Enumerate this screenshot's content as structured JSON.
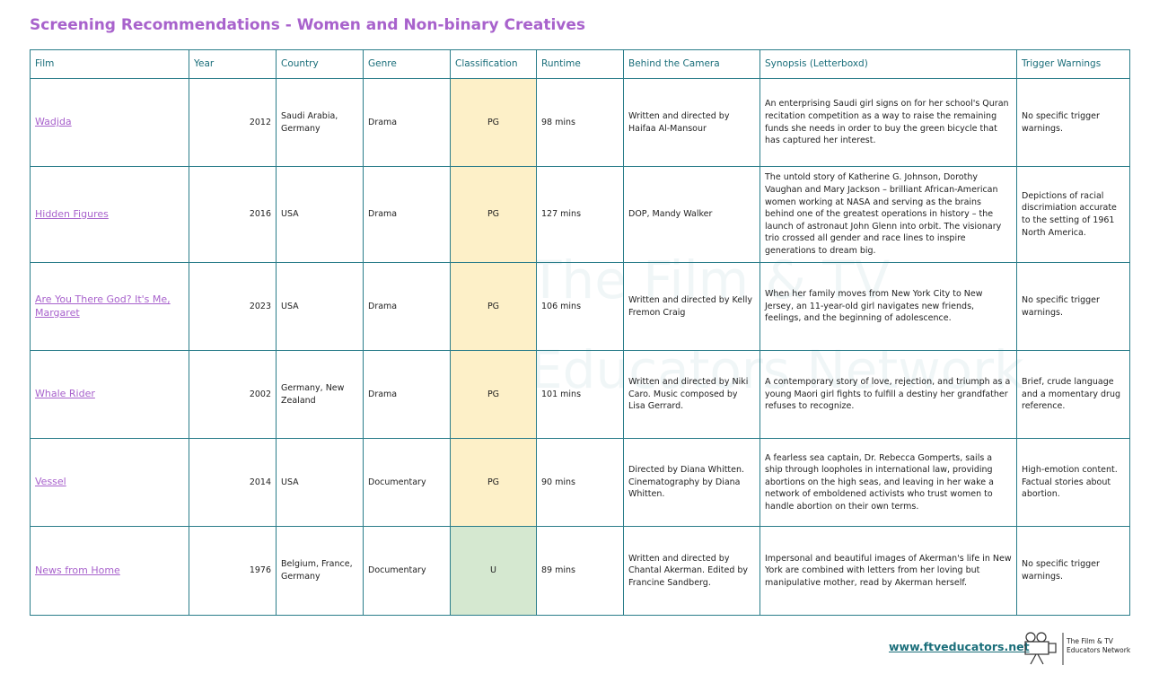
{
  "header": {
    "title": "Screening Recommendations - Women and Non-binary Creatives"
  },
  "table": {
    "headers": [
      "Film",
      "Year",
      "Country",
      "Genre",
      "Classification",
      "Runtime",
      "Behind the Camera",
      "Synopsis (Letterboxd)",
      "Trigger Warnings"
    ],
    "rows": [
      [
        "Wadjda",
        "2012",
        "Saudi Arabia, Germany",
        "Drama",
        "PG",
        "98 mins",
        "Written and directed by Haifaa Al-Mansour",
        "An enterprising Saudi girl signs on for her school's Quran recitation competition as a way to raise the remaining funds she needs in order to buy the green bicycle that has captured her interest.",
        "No specific trigger warnings."
      ],
      [
        "Hidden Figures",
        "2016",
        "USA",
        "Drama",
        "PG",
        "127 mins",
        "DOP, Mandy Walker",
        "The untold story of Katherine G. Johnson, Dorothy Vaughan and Mary Jackson – brilliant African-American women working at NASA and serving as the brains behind one of the greatest operations in history – the launch of astronaut John Glenn into orbit. The visionary trio crossed all gender and race lines to inspire generations to dream big.",
        "Depictions of racial discrimiation accurate to the setting of 1961 North America."
      ],
      [
        "Are You There God? It's Me, Margaret",
        "2023",
        "USA",
        "Drama",
        "PG",
        "106 mins",
        "Written and directed by Kelly Fremon Craig",
        "When her family moves from New York City to New Jersey, an 11-year-old girl navigates new friends, feelings, and the beginning of adolescence.",
        "No specific trigger warnings."
      ],
      [
        "Whale Rider",
        "2002",
        "Germany, New Zealand",
        "Drama",
        "PG",
        "101 mins",
        "Written and directed by Niki Caro. Music composed by Lisa Gerrard.",
        "A contemporary story of love, rejection, and triumph as a young Maori girl fights to fulfill a destiny her grandfather refuses to recognize.",
        "Brief, crude language and a momentary drug reference."
      ],
      [
        "Vessel",
        "2014",
        "USA",
        "Documentary",
        "PG",
        "90 mins",
        "Directed by Diana Whitten. Cinematography by Diana Whitten.",
        "A fearless sea captain, Dr. Rebecca Gomperts, sails a ship through loopholes in international law, providing abortions on the high seas, and leaving in her wake a network of emboldened activists who trust women to handle abortion on their own terms.",
        "High-emotion content. Factual stories about abortion."
      ],
      [
        "News from Home",
        "1976",
        "Belgium, France, Germany",
        "Documentary",
        "U",
        "89 mins",
        "Written and directed by Chantal Akerman. Edited by Francine Sandberg.",
        "Impersonal and beautiful images of Akerman's life in New York are combined with letters from her loving but manipulative mother, read by Akerman herself.",
        "No specific trigger warnings."
      ]
    ]
  },
  "watermark": {
    "lines": [
      "The Film & TV",
      "Educators Network"
    ]
  },
  "footer": {
    "url": "www.ftveducators.net",
    "logo_text": [
      "The Film & TV",
      "Educators Network"
    ]
  }
}
